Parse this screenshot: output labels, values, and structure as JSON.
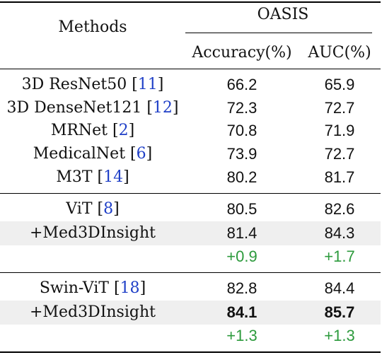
{
  "header": {
    "methods": "Methods",
    "dataset": "OASIS",
    "col_accuracy": "Accuracy(%)",
    "col_auc": "AUC(%)"
  },
  "groups": [
    {
      "rows": [
        {
          "method": "3D ResNet50",
          "cite": "11",
          "accuracy": "66.2",
          "auc": "65.9"
        },
        {
          "method": "3D DenseNet121",
          "cite": "12",
          "accuracy": "72.3",
          "auc": "72.7"
        },
        {
          "method": "MRNet",
          "cite": "2",
          "accuracy": "70.8",
          "auc": "71.9"
        },
        {
          "method": "MedicalNet",
          "cite": "6",
          "accuracy": "73.9",
          "auc": "72.7"
        },
        {
          "method": "M3T",
          "cite": "14",
          "accuracy": "80.2",
          "auc": "81.7"
        }
      ]
    },
    {
      "base": {
        "method": "ViT",
        "cite": "8",
        "accuracy": "80.5",
        "auc": "82.6"
      },
      "ours": {
        "method": "+Med3DInsight",
        "accuracy": "81.4",
        "auc": "84.3"
      },
      "delta": {
        "accuracy": "+0.9",
        "auc": "+1.7"
      }
    },
    {
      "base": {
        "method": "Swin-ViT",
        "cite": "18",
        "accuracy": "82.8",
        "auc": "84.4"
      },
      "ours": {
        "method": "+Med3DInsight",
        "accuracy": "84.1",
        "auc": "85.7"
      },
      "delta": {
        "accuracy": "+1.3",
        "auc": "+1.3"
      }
    }
  ],
  "colors": {
    "citation": "#1f3fc7",
    "improvement": "#2c9a3c",
    "highlight_row": "#efefef"
  }
}
